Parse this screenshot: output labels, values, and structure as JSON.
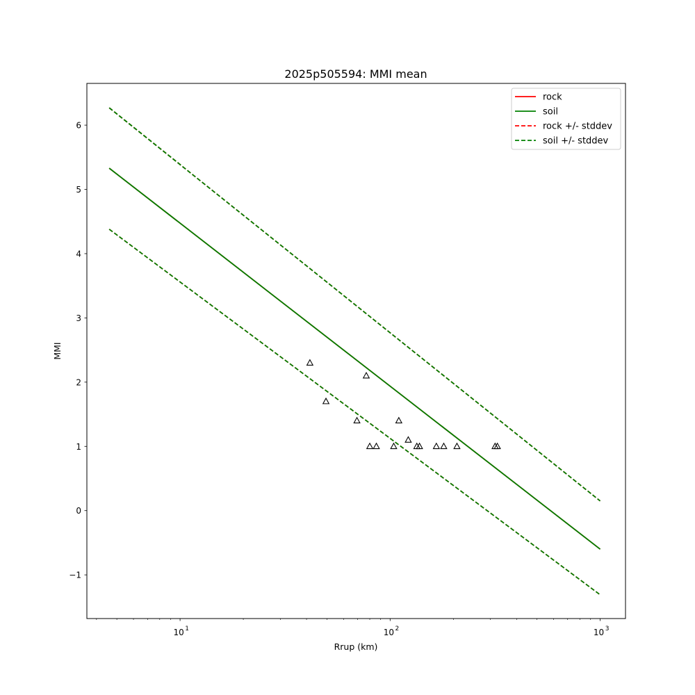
{
  "chart_data": {
    "type": "line",
    "title": "2025p505594: MMI mean",
    "xlabel": "Rrup (km)",
    "ylabel": "MMI",
    "xscale": "log",
    "xlim": [
      3.6,
      1320
    ],
    "ylim": [
      -1.68,
      6.65
    ],
    "x_ticks": [
      {
        "value": 10,
        "base": "10",
        "exp": "1"
      },
      {
        "value": 100,
        "base": "10",
        "exp": "2"
      },
      {
        "value": 1000,
        "base": "10",
        "exp": "3"
      }
    ],
    "y_ticks": [
      {
        "value": -1,
        "label": "−1"
      },
      {
        "value": 0,
        "label": "0"
      },
      {
        "value": 1,
        "label": "1"
      },
      {
        "value": 2,
        "label": "2"
      },
      {
        "value": 3,
        "label": "3"
      },
      {
        "value": 4,
        "label": "4"
      },
      {
        "value": 5,
        "label": "5"
      },
      {
        "value": 6,
        "label": "6"
      }
    ],
    "legend_position": "top-right",
    "series": [
      {
        "name": "rock",
        "color": "#ff0000",
        "style": "solid",
        "x": [
          4.6,
          1000
        ],
        "y": [
          5.33,
          -0.6
        ]
      },
      {
        "name": "soil",
        "color": "#008000",
        "style": "solid",
        "x": [
          4.6,
          1000
        ],
        "y": [
          5.33,
          -0.6
        ]
      },
      {
        "name": "rock +/- stddev",
        "color": "#ff0000",
        "style": "dashed",
        "x": [
          4.6,
          1000
        ],
        "y": [
          6.27,
          0.15
        ],
        "y2": [
          4.38,
          -1.31
        ]
      },
      {
        "name": "soil +/- stddev",
        "color": "#008000",
        "style": "dashed",
        "x": [
          4.6,
          1000
        ],
        "y": [
          6.27,
          0.15
        ],
        "y2": [
          4.38,
          -1.31
        ]
      }
    ],
    "observations": {
      "marker": "open-triangle",
      "color": "#000000",
      "x": [
        41.5,
        49.5,
        69.5,
        77,
        80,
        86,
        104,
        110,
        122,
        134,
        138,
        166,
        180,
        208,
        316,
        324
      ],
      "y": [
        2.3,
        1.7,
        1.4,
        2.1,
        1.0,
        1.0,
        1.0,
        1.4,
        1.1,
        1.0,
        1.0,
        1.0,
        1.0,
        1.0,
        1.0,
        1.0
      ]
    }
  }
}
